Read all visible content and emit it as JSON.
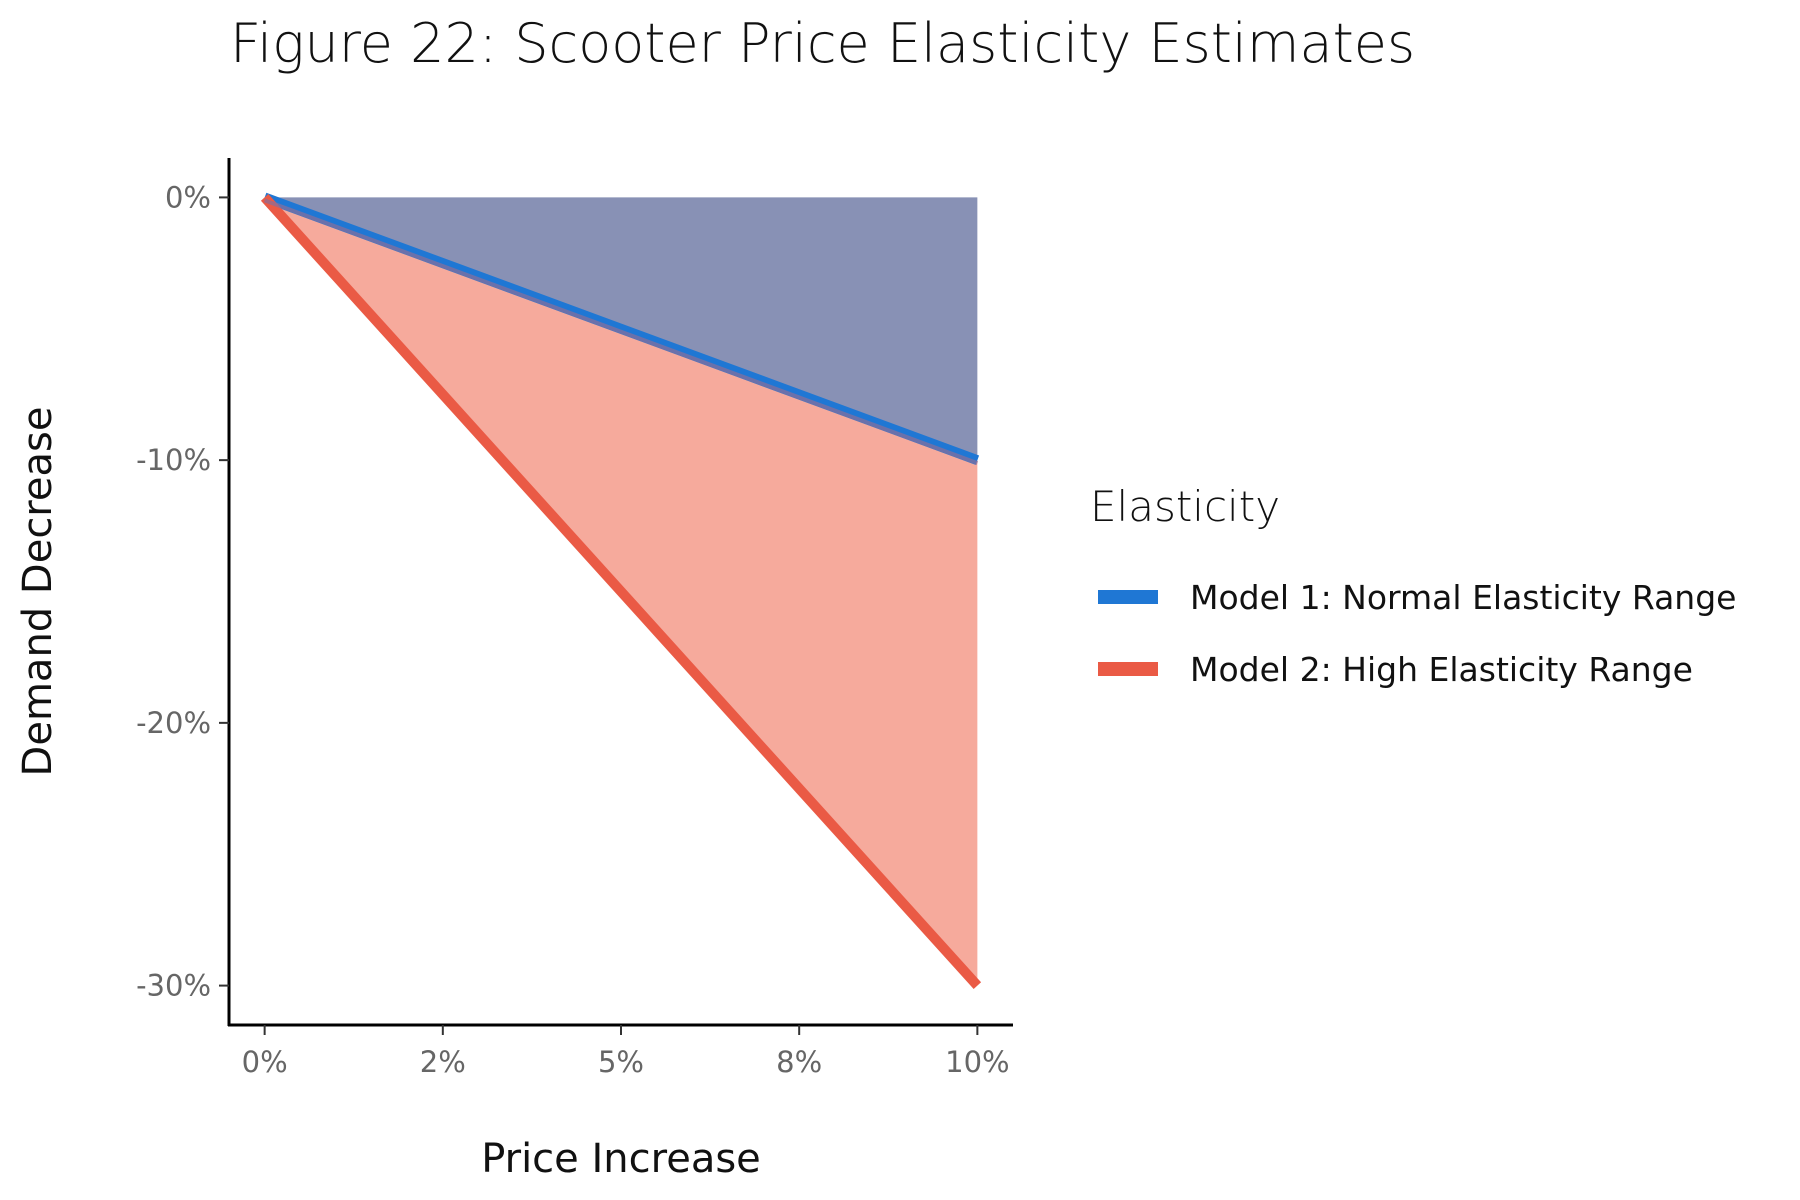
{
  "chart_data": {
    "type": "area",
    "title": "Figure 22: Scooter Price Elasticity Estimates",
    "xlabel": "Price Increase",
    "ylabel": "Demand Decrease",
    "x_ticks": [
      {
        "value": 0,
        "label": "0%"
      },
      {
        "value": 2.5,
        "label": "2%"
      },
      {
        "value": 5,
        "label": "5%"
      },
      {
        "value": 7.5,
        "label": "8%"
      },
      {
        "value": 10,
        "label": "10%"
      }
    ],
    "y_ticks": [
      {
        "value": 0,
        "label": "0%"
      },
      {
        "value": -10,
        "label": "-10%"
      },
      {
        "value": -20,
        "label": "-20%"
      },
      {
        "value": -30,
        "label": "-30%"
      }
    ],
    "xlim": [
      -0.5,
      10.5
    ],
    "ylim": [
      -31.5,
      1.5
    ],
    "legend_title": "Elasticity",
    "legend_position": "right",
    "series": [
      {
        "name": "Model 1: Normal Elasticity Range",
        "color": "#1f77d4",
        "fill_color": "#8891b5",
        "x": [
          0,
          10
        ],
        "y": [
          0,
          -10
        ],
        "band_to": 0
      },
      {
        "name": "Model 2: High Elasticity Range",
        "color": "#ea5a45",
        "fill_color": "#f6aa9c",
        "x": [
          0,
          10
        ],
        "y": [
          0,
          -30
        ],
        "band_to": "Model 1: Normal Elasticity Range"
      }
    ],
    "grid": false
  }
}
